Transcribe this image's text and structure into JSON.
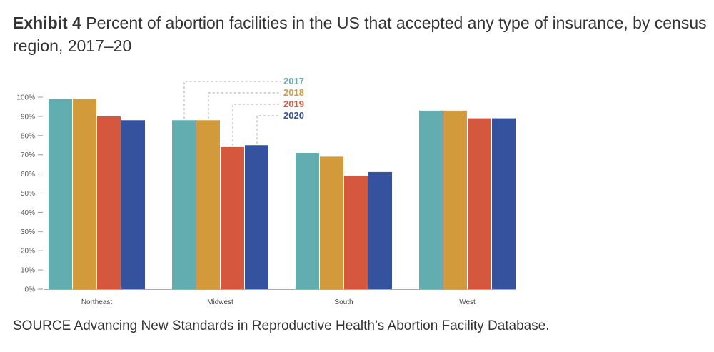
{
  "header": {
    "exhibit_label": "Exhibit 4",
    "title": "Percent of abortion facilities in the US that accepted any type of insurance, by census region, 2017–20"
  },
  "footer": {
    "source": "SOURCE Advancing New Standards in Reproductive Health’s Abortion Facility Database."
  },
  "chart_data": {
    "type": "bar",
    "categories": [
      "Northeast",
      "Midwest",
      "South",
      "West"
    ],
    "series": [
      {
        "name": "2017",
        "color": "#62adb0",
        "values": [
          99,
          88,
          71,
          93
        ]
      },
      {
        "name": "2018",
        "color": "#d39a3c",
        "values": [
          99,
          88,
          69,
          93
        ]
      },
      {
        "name": "2019",
        "color": "#d4573e",
        "values": [
          90,
          74,
          59,
          89
        ]
      },
      {
        "name": "2020",
        "color": "#34529e",
        "values": [
          88,
          75,
          61,
          89
        ]
      }
    ],
    "ylim": [
      0,
      100
    ],
    "yticks": [
      "0%",
      "10%",
      "20%",
      "30%",
      "40%",
      "50%",
      "60%",
      "70%",
      "80%",
      "90%",
      "100%"
    ],
    "legend_position": "top, above Midwest group",
    "grid": false
  }
}
